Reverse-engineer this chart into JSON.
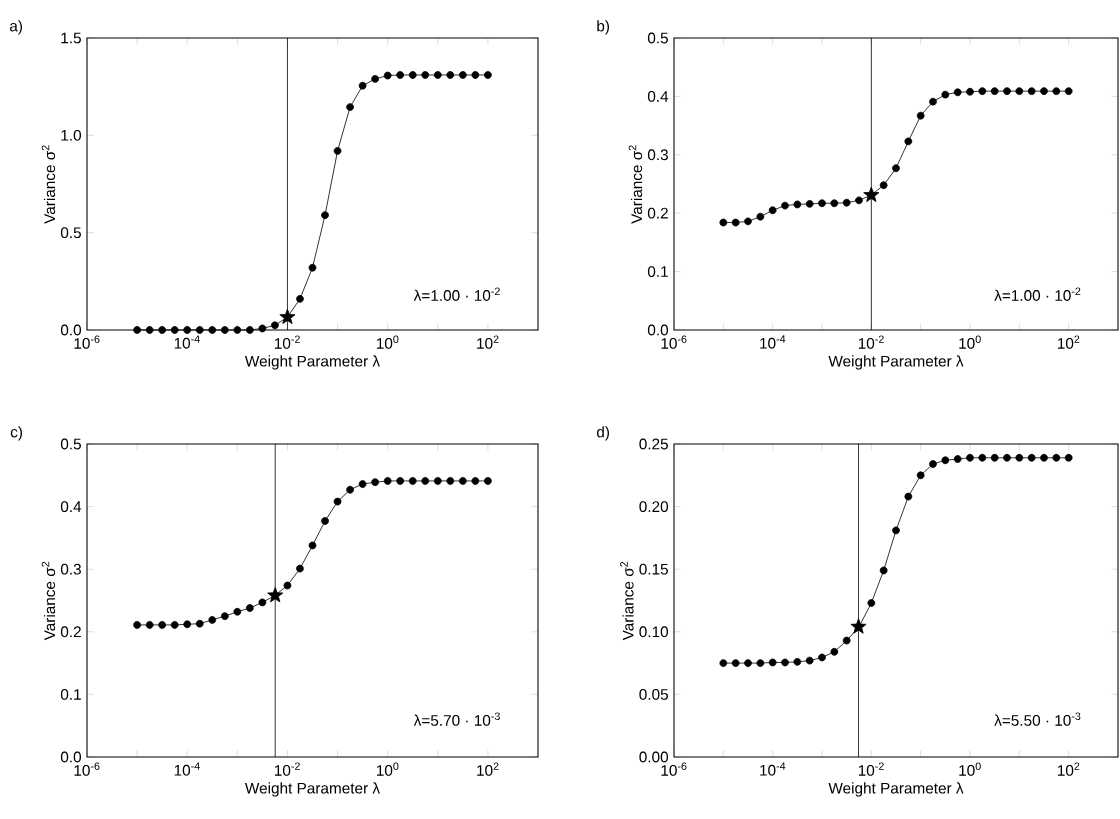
{
  "chart_data": [
    {
      "type": "line",
      "title": "a)",
      "xlabel": "Weight Parameter λ",
      "ylabel": "Variance σ$^{2}$",
      "log": "x",
      "xlim": [
        1e-06,
        1000
      ],
      "ylim": [
        0,
        1.5
      ],
      "xticks": [
        {
          "value": 1e-06,
          "label": "10$^{-6}$"
        },
        {
          "value": 1e-05,
          "label": null
        },
        {
          "value": 0.0001,
          "label": "10$^{-4}$"
        },
        {
          "value": 0.001,
          "label": null
        },
        {
          "value": 0.01,
          "label": "10$^{-2}$"
        },
        {
          "value": 0.1,
          "label": null
        },
        {
          "value": 1,
          "label": "10$^{0}$"
        },
        {
          "value": 10,
          "label": null
        },
        {
          "value": 100,
          "label": "10$^{2}$"
        }
      ],
      "yticks": [
        {
          "value": 0,
          "label": "0.0"
        },
        {
          "value": 0.5,
          "label": "0.5"
        },
        {
          "value": 1,
          "label": "1.0"
        },
        {
          "value": 1.5,
          "label": "1.5"
        }
      ],
      "series": [
        {
          "marker": "circle",
          "color": "#000000",
          "x": [
            1e-05,
            1.778e-05,
            3.162e-05,
            5.623e-05,
            0.0001,
            0.0001778,
            0.0003162,
            0.0005623,
            0.001,
            0.001778,
            0.003162,
            0.005623,
            0.01,
            0.01778,
            0.03162,
            0.05623,
            0.1,
            0.1778,
            0.3162,
            0.5623,
            1,
            1.778,
            3.162,
            5.623,
            10,
            17.78,
            31.62,
            56.23,
            100
          ],
          "values": [
            0,
            0,
            0,
            0,
            0,
            0,
            0,
            0,
            0,
            0,
            0.008,
            0.024,
            0.066,
            0.16,
            0.32,
            0.59,
            0.92,
            1.145,
            1.255,
            1.29,
            1.307,
            1.31,
            1.31,
            1.31,
            1.31,
            1.31,
            1.31,
            1.31,
            1.31
          ]
        },
        {
          "type": "scatter",
          "marker": "star",
          "color": "#000000",
          "x": [
            0.01
          ],
          "values": [
            0.066
          ]
        }
      ],
      "ref_lines": [
        {
          "axis": "x",
          "value": 0.01
        }
      ],
      "annotations": [
        "λ=1.00 · 10$^{-2}$"
      ]
    },
    {
      "type": "line",
      "title": "b)",
      "xlabel": "Weight Parameter λ",
      "ylabel": "Variance σ$^{2}$",
      "log": "x",
      "xlim": [
        1e-06,
        1000
      ],
      "ylim": [
        0,
        0.5
      ],
      "xticks": [
        {
          "value": 1e-06,
          "label": "10$^{-6}$"
        },
        {
          "value": 1e-05,
          "label": null
        },
        {
          "value": 0.0001,
          "label": "10$^{-4}$"
        },
        {
          "value": 0.001,
          "label": null
        },
        {
          "value": 0.01,
          "label": "10$^{-2}$"
        },
        {
          "value": 0.1,
          "label": null
        },
        {
          "value": 1,
          "label": "10$^{0}$"
        },
        {
          "value": 10,
          "label": null
        },
        {
          "value": 100,
          "label": "10$^{2}$"
        }
      ],
      "yticks": [
        {
          "value": 0,
          "label": "0.0"
        },
        {
          "value": 0.1,
          "label": "0.1"
        },
        {
          "value": 0.2,
          "label": "0.2"
        },
        {
          "value": 0.3,
          "label": "0.3"
        },
        {
          "value": 0.4,
          "label": "0.4"
        },
        {
          "value": 0.5,
          "label": "0.5"
        }
      ],
      "series": [
        {
          "marker": "circle",
          "color": "#000000",
          "x": [
            1e-05,
            1.778e-05,
            3.162e-05,
            5.623e-05,
            0.0001,
            0.0001778,
            0.0003162,
            0.0005623,
            0.001,
            0.001778,
            0.003162,
            0.005623,
            0.01,
            0.01778,
            0.03162,
            0.05623,
            0.1,
            0.1778,
            0.3162,
            0.5623,
            1,
            1.778,
            3.162,
            5.623,
            10,
            17.78,
            31.62,
            56.23,
            100
          ],
          "values": [
            0.184,
            0.184,
            0.186,
            0.194,
            0.205,
            0.213,
            0.215,
            0.216,
            0.217,
            0.217,
            0.218,
            0.222,
            0.231,
            0.248,
            0.277,
            0.323,
            0.367,
            0.391,
            0.403,
            0.407,
            0.408,
            0.409,
            0.409,
            0.409,
            0.409,
            0.409,
            0.409,
            0.409,
            0.409
          ]
        },
        {
          "type": "scatter",
          "marker": "star",
          "color": "#000000",
          "x": [
            0.01
          ],
          "values": [
            0.231
          ]
        }
      ],
      "ref_lines": [
        {
          "axis": "x",
          "value": 0.01
        }
      ],
      "annotations": [
        "λ=1.00 · 10$^{-2}$"
      ]
    },
    {
      "type": "line",
      "title": "c)",
      "xlabel": "Weight Parameter λ",
      "ylabel": "Variance σ$^{2}$",
      "log": "x",
      "xlim": [
        1e-06,
        1000
      ],
      "ylim": [
        0,
        0.5
      ],
      "xticks": [
        {
          "value": 1e-06,
          "label": "10$^{-6}$"
        },
        {
          "value": 1e-05,
          "label": null
        },
        {
          "value": 0.0001,
          "label": "10$^{-4}$"
        },
        {
          "value": 0.001,
          "label": null
        },
        {
          "value": 0.01,
          "label": "10$^{-2}$"
        },
        {
          "value": 0.1,
          "label": null
        },
        {
          "value": 1,
          "label": "10$^{0}$"
        },
        {
          "value": 10,
          "label": null
        },
        {
          "value": 100,
          "label": "10$^{2}$"
        }
      ],
      "yticks": [
        {
          "value": 0,
          "label": "0.0"
        },
        {
          "value": 0.1,
          "label": "0.1"
        },
        {
          "value": 0.2,
          "label": "0.2"
        },
        {
          "value": 0.3,
          "label": "0.3"
        },
        {
          "value": 0.4,
          "label": "0.4"
        },
        {
          "value": 0.5,
          "label": "0.5"
        }
      ],
      "series": [
        {
          "marker": "circle",
          "color": "#000000",
          "x": [
            1e-05,
            1.778e-05,
            3.162e-05,
            5.623e-05,
            0.0001,
            0.0001778,
            0.0003162,
            0.0005623,
            0.001,
            0.001778,
            0.003162,
            0.005623,
            0.01,
            0.01778,
            0.03162,
            0.05623,
            0.1,
            0.1778,
            0.3162,
            0.5623,
            1,
            1.778,
            3.162,
            5.623,
            10,
            17.78,
            31.62,
            56.23,
            100
          ],
          "values": [
            0.211,
            0.211,
            0.211,
            0.211,
            0.212,
            0.213,
            0.219,
            0.225,
            0.232,
            0.238,
            0.247,
            0.258,
            0.274,
            0.301,
            0.338,
            0.377,
            0.408,
            0.427,
            0.436,
            0.439,
            0.441,
            0.441,
            0.441,
            0.441,
            0.441,
            0.441,
            0.441,
            0.441,
            0.441
          ]
        },
        {
          "type": "scatter",
          "marker": "star",
          "color": "#000000",
          "x": [
            0.0057
          ],
          "values": [
            0.258
          ]
        }
      ],
      "ref_lines": [
        {
          "axis": "x",
          "value": 0.0057
        }
      ],
      "annotations": [
        "λ=5.70 · 10$^{-3}$"
      ]
    },
    {
      "type": "line",
      "title": "d)",
      "xlabel": "Weight Parameter λ",
      "ylabel": "Variance σ$^{2}$",
      "log": "x",
      "xlim": [
        1e-06,
        1000
      ],
      "ylim": [
        0,
        0.25
      ],
      "xticks": [
        {
          "value": 1e-06,
          "label": "10$^{-6}$"
        },
        {
          "value": 1e-05,
          "label": null
        },
        {
          "value": 0.0001,
          "label": "10$^{-4}$"
        },
        {
          "value": 0.001,
          "label": null
        },
        {
          "value": 0.01,
          "label": "10$^{-2}$"
        },
        {
          "value": 0.1,
          "label": null
        },
        {
          "value": 1,
          "label": "10$^{0}$"
        },
        {
          "value": 10,
          "label": null
        },
        {
          "value": 100,
          "label": "10$^{2}$"
        }
      ],
      "yticks": [
        {
          "value": 0,
          "label": "0.00"
        },
        {
          "value": 0.05,
          "label": "0.05"
        },
        {
          "value": 0.1,
          "label": "0.10"
        },
        {
          "value": 0.15,
          "label": "0.15"
        },
        {
          "value": 0.2,
          "label": "0.20"
        },
        {
          "value": 0.25,
          "label": "0.25"
        }
      ],
      "series": [
        {
          "marker": "circle",
          "color": "#000000",
          "x": [
            1e-05,
            1.778e-05,
            3.162e-05,
            5.623e-05,
            0.0001,
            0.0001778,
            0.0003162,
            0.0005623,
            0.001,
            0.001778,
            0.003162,
            0.005623,
            0.01,
            0.01778,
            0.03162,
            0.05623,
            0.1,
            0.1778,
            0.3162,
            0.5623,
            1,
            1.778,
            3.162,
            5.623,
            10,
            17.78,
            31.62,
            56.23,
            100
          ],
          "values": [
            0.075,
            0.075,
            0.075,
            0.075,
            0.0755,
            0.0755,
            0.076,
            0.077,
            0.0795,
            0.084,
            0.093,
            0.104,
            0.123,
            0.149,
            0.181,
            0.208,
            0.225,
            0.234,
            0.237,
            0.238,
            0.239,
            0.239,
            0.239,
            0.239,
            0.239,
            0.239,
            0.239,
            0.239,
            0.239
          ]
        },
        {
          "type": "scatter",
          "marker": "star",
          "color": "#000000",
          "x": [
            0.0055
          ],
          "values": [
            0.104
          ]
        }
      ],
      "ref_lines": [
        {
          "axis": "x",
          "value": 0.0055
        }
      ],
      "annotations": [
        "λ=5.50 · 10$^{-3}$"
      ]
    }
  ]
}
